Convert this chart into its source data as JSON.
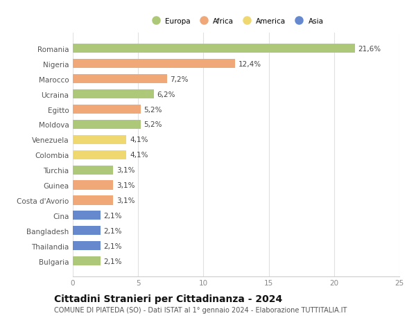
{
  "countries": [
    "Romania",
    "Nigeria",
    "Marocco",
    "Ucraina",
    "Egitto",
    "Moldova",
    "Venezuela",
    "Colombia",
    "Turchia",
    "Guinea",
    "Costa d'Avorio",
    "Cina",
    "Bangladesh",
    "Thailandia",
    "Bulgaria"
  ],
  "values": [
    21.6,
    12.4,
    7.2,
    6.2,
    5.2,
    5.2,
    4.1,
    4.1,
    3.1,
    3.1,
    3.1,
    2.1,
    2.1,
    2.1,
    2.1
  ],
  "labels": [
    "21,6%",
    "12,4%",
    "7,2%",
    "6,2%",
    "5,2%",
    "5,2%",
    "4,1%",
    "4,1%",
    "3,1%",
    "3,1%",
    "3,1%",
    "2,1%",
    "2,1%",
    "2,1%",
    "2,1%"
  ],
  "continents": [
    "Europa",
    "Africa",
    "Africa",
    "Europa",
    "Africa",
    "Europa",
    "America",
    "America",
    "Europa",
    "Africa",
    "Africa",
    "Asia",
    "Asia",
    "Asia",
    "Europa"
  ],
  "colors": {
    "Europa": "#adc878",
    "Africa": "#f0a878",
    "America": "#f0d870",
    "Asia": "#6688cc"
  },
  "legend_order": [
    "Europa",
    "Africa",
    "America",
    "Asia"
  ],
  "xlim": [
    0,
    25
  ],
  "xticks": [
    0,
    5,
    10,
    15,
    20,
    25
  ],
  "title": "Cittadini Stranieri per Cittadinanza - 2024",
  "subtitle": "COMUNE DI PIATEDA (SO) - Dati ISTAT al 1° gennaio 2024 - Elaborazione TUTTITALIA.IT",
  "background_color": "#ffffff",
  "bar_height": 0.6,
  "grid_color": "#e0e0e0",
  "label_fontsize": 7.5,
  "tick_fontsize": 7.5,
  "title_fontsize": 10,
  "subtitle_fontsize": 7
}
